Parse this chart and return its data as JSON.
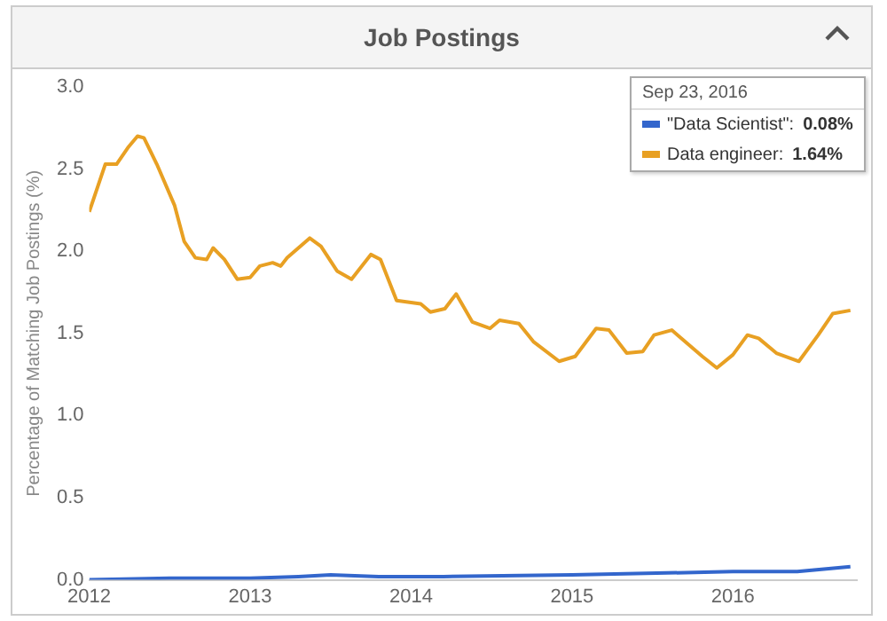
{
  "chart_data": {
    "type": "line",
    "title": "Job Postings",
    "ylabel": "Percentage of Matching Job Postings (%)",
    "xlim": [
      2012,
      2016.77
    ],
    "xticks": [
      2012,
      2013,
      2014,
      2015,
      2016
    ],
    "ylim": [
      0,
      3
    ],
    "yticks": [
      {
        "value": 0,
        "label": "0.0"
      },
      {
        "value": 0.5,
        "label": "0.5"
      },
      {
        "value": 1,
        "label": "1.0"
      },
      {
        "value": 1.5,
        "label": "1.5"
      },
      {
        "value": 2,
        "label": "2.0"
      },
      {
        "value": 2.5,
        "label": "2.5"
      },
      {
        "value": 3,
        "label": "3.0"
      }
    ],
    "grid": false,
    "legend": "top right",
    "annotations": [
      "Sep 23, 2016",
      "0.08%",
      "1.64%"
    ],
    "series": [
      {
        "name": "\"Data Scientist\":",
        "color": "#3366cc",
        "x": [
          2012,
          2012.5,
          2013,
          2013.3,
          2013.5,
          2013.8,
          2014.2,
          2015,
          2016,
          2016.4,
          2016.73
        ],
        "values": [
          0,
          0.01,
          0.01,
          0.02,
          0.03,
          0.02,
          0.02,
          0.03,
          0.05,
          0.05,
          0.08
        ]
      },
      {
        "name": "Data engineer:",
        "color": "#e8a023",
        "x": [
          2012,
          2012.1,
          2012.17,
          2012.24,
          2012.3,
          2012.34,
          2012.42,
          2012.53,
          2012.59,
          2012.66,
          2012.73,
          2012.77,
          2012.84,
          2012.92,
          2013,
          2013.06,
          2013.14,
          2013.19,
          2013.23,
          2013.37,
          2013.44,
          2013.54,
          2013.63,
          2013.75,
          2013.81,
          2013.91,
          2014.06,
          2014.12,
          2014.21,
          2014.28,
          2014.38,
          2014.49,
          2014.55,
          2014.67,
          2014.76,
          2014.92,
          2015.02,
          2015.15,
          2015.23,
          2015.34,
          2015.44,
          2015.51,
          2015.62,
          2015.81,
          2015.9,
          2016,
          2016.09,
          2016.16,
          2016.27,
          2016.41,
          2016.53,
          2016.62,
          2016.73
        ],
        "values": [
          2.24,
          2.53,
          2.53,
          2.63,
          2.7,
          2.69,
          2.53,
          2.28,
          2.06,
          1.96,
          1.95,
          2.02,
          1.95,
          1.83,
          1.84,
          1.91,
          1.93,
          1.91,
          1.96,
          2.08,
          2.03,
          1.88,
          1.83,
          1.98,
          1.95,
          1.7,
          1.68,
          1.63,
          1.65,
          1.74,
          1.57,
          1.53,
          1.58,
          1.56,
          1.45,
          1.33,
          1.36,
          1.53,
          1.52,
          1.38,
          1.39,
          1.49,
          1.52,
          1.36,
          1.29,
          1.37,
          1.49,
          1.47,
          1.38,
          1.33,
          1.49,
          1.62,
          1.64
        ]
      }
    ]
  }
}
